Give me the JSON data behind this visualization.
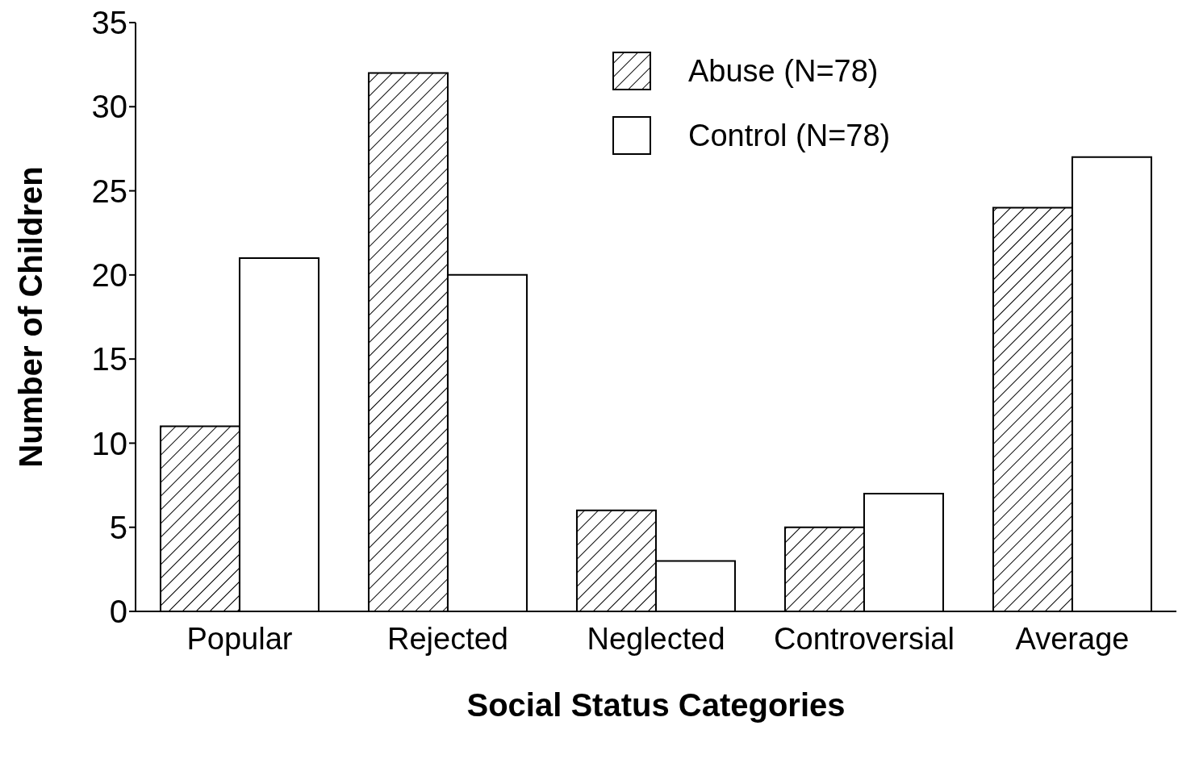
{
  "chart_data": {
    "type": "bar",
    "xlabel": "Social Status Categories",
    "ylabel": "Number of Children",
    "categories": [
      "Popular",
      "Rejected",
      "Neglected",
      "Controversial",
      "Average"
    ],
    "series": [
      {
        "name": "Abuse (N=78)",
        "color": "#000000",
        "values": [
          11,
          32,
          6,
          5,
          24
        ]
      },
      {
        "name": "Control (N=78)",
        "color": "#ffffff",
        "values": [
          21,
          20,
          3,
          7,
          27
        ]
      }
    ],
    "ylim": [
      0,
      35
    ],
    "yticks": [
      0,
      5,
      10,
      15,
      20,
      25,
      30,
      35
    ],
    "grid": false,
    "legend": "top right"
  }
}
